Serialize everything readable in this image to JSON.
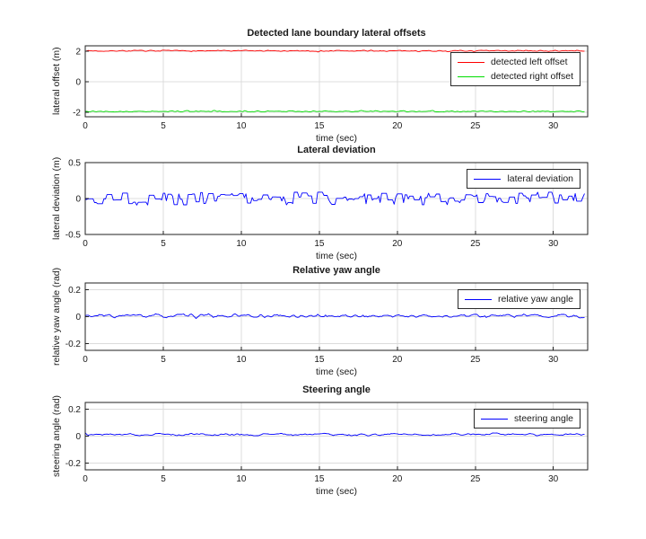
{
  "figure": {
    "background": "#ffffff",
    "axes_color": "#202020",
    "grid_color": "#dcdcdc",
    "text_color": "#1a1a1a"
  },
  "chart_data": [
    {
      "type": "line",
      "title": "Detected lane boundary lateral offsets",
      "xlabel": "time (sec)",
      "ylabel": "lateral offset (m)",
      "xlim": [
        0,
        32.2
      ],
      "ylim": [
        -2.3,
        2.35
      ],
      "xticks": [
        0,
        5,
        10,
        15,
        20,
        25,
        30
      ],
      "yticks": [
        -2,
        0,
        2
      ],
      "grid": true,
      "legend_position": "top-right",
      "x_start": 0,
      "x_end": 32,
      "x_step": 0.1,
      "series": [
        {
          "name": "detected left offset",
          "color": "#ff0000",
          "pattern": "noisy",
          "mean": 2.02,
          "amplitude": 0.05,
          "smooth_window": 2,
          "spike_prob": 0.05,
          "spike_mag": -0.08,
          "seed": 7
        },
        {
          "name": "detected right offset",
          "color": "#00dd00",
          "pattern": "noisy",
          "mean": -1.95,
          "amplitude": 0.04,
          "smooth_window": 2,
          "spike_prob": 0.05,
          "spike_mag": 0.09,
          "seed": 13
        }
      ]
    },
    {
      "type": "line",
      "title": "Lateral deviation",
      "xlabel": "time (sec)",
      "ylabel": "lateral deviation (m)",
      "xlim": [
        0,
        32.2
      ],
      "ylim": [
        -0.5,
        0.5
      ],
      "xticks": [
        0,
        5,
        10,
        15,
        20,
        25,
        30
      ],
      "yticks": [
        -0.5,
        0,
        0.5
      ],
      "grid": true,
      "legend_position": "top-right",
      "x_start": 0,
      "x_end": 32,
      "x_step": 0.1,
      "series": [
        {
          "name": "lateral deviation",
          "color": "#0000ff",
          "pattern": "steps",
          "mean": 0,
          "amplitude": 0.09,
          "spike_prob": 0.025,
          "spike_mag": -0.07,
          "seed": 21
        }
      ]
    },
    {
      "type": "line",
      "title": "Relative yaw angle",
      "xlabel": "time (sec)",
      "ylabel": "relative yaw angle (rad)",
      "xlim": [
        0,
        32.2
      ],
      "ylim": [
        -0.25,
        0.25
      ],
      "xticks": [
        0,
        5,
        10,
        15,
        20,
        25,
        30
      ],
      "yticks": [
        -0.2,
        0,
        0.2
      ],
      "grid": true,
      "legend_position": "top-right",
      "x_start": 0,
      "x_end": 32,
      "x_step": 0.1,
      "series": [
        {
          "name": "relative yaw angle",
          "color": "#0000ff",
          "pattern": "noisy",
          "mean": 0.005,
          "amplitude": 0.02,
          "smooth_window": 3,
          "seed": 33
        }
      ]
    },
    {
      "type": "line",
      "title": "Steering angle",
      "xlabel": "time (sec)",
      "ylabel": "steering angle (rad)",
      "xlim": [
        0,
        32.2
      ],
      "ylim": [
        -0.25,
        0.25
      ],
      "xticks": [
        0,
        5,
        10,
        15,
        20,
        25,
        30
      ],
      "yticks": [
        -0.2,
        0,
        0.2
      ],
      "grid": true,
      "legend_position": "top-right",
      "x_start": 0,
      "x_end": 32,
      "x_step": 0.1,
      "series": [
        {
          "name": "steering angle",
          "color": "#0000ff",
          "pattern": "noisy",
          "mean": 0.012,
          "amplitude": 0.02,
          "smooth_window": 5,
          "seed": 44
        }
      ]
    }
  ]
}
